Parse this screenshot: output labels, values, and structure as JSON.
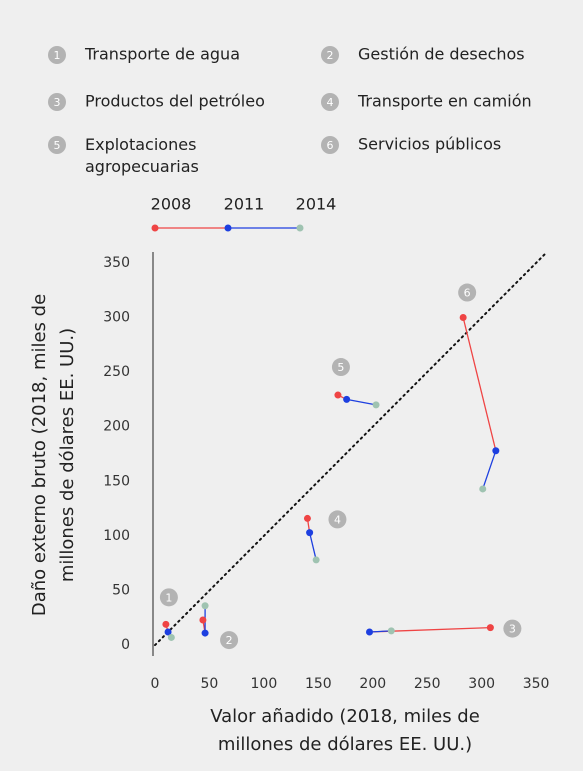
{
  "chart_data": {
    "type": "connected_scatter",
    "legend_items": [
      {
        "number": "1",
        "name": "Transporte de agua"
      },
      {
        "number": "2",
        "name": "Gestión de desechos"
      },
      {
        "number": "3",
        "name": "Productos del petróleo"
      },
      {
        "number": "4",
        "name": "Transporte en camión"
      },
      {
        "number": "5",
        "name": "Explotaciones agropecuarias"
      },
      {
        "number": "6",
        "name": "Servicios públicos"
      }
    ],
    "years": [
      {
        "name": "2008",
        "color": "#ef4444"
      },
      {
        "name": "2011",
        "color": "#1d3fe0"
      },
      {
        "name": "2014",
        "color": "#9fc3b1"
      }
    ],
    "segment_colors": [
      "#ef4444",
      "#1d3fe0"
    ],
    "groups": [
      {
        "x": [
          10,
          12,
          15
        ],
        "y": [
          19,
          12,
          7
        ]
      },
      {
        "x": [
          44,
          46,
          46
        ],
        "y": [
          23,
          11,
          36
        ]
      },
      {
        "x": [
          308,
          197,
          217
        ],
        "y": [
          16,
          12,
          13
        ]
      },
      {
        "x": [
          140,
          142,
          148
        ],
        "y": [
          116,
          103,
          78
        ]
      },
      {
        "x": [
          168,
          176,
          203
        ],
        "y": [
          229,
          225,
          220
        ]
      },
      {
        "x": [
          283,
          313,
          301
        ],
        "y": [
          300,
          178,
          143
        ]
      }
    ],
    "xlabel": [
      "Valor añadido (2018, miles de",
      "millones de dólares EE. UU.)"
    ],
    "ylabel": [
      "Daño externo bruto (2018, miles de",
      "millones de dólares EE. UU.)"
    ],
    "xlim": [
      0,
      360
    ],
    "ylim": [
      -10,
      360
    ],
    "xticks": [
      0,
      50,
      100,
      150,
      200,
      250,
      300,
      350
    ],
    "yticks": [
      0,
      50,
      100,
      150,
      200,
      250,
      300,
      350
    ],
    "diagonal": true,
    "badge_color": "#b3b3b3"
  }
}
